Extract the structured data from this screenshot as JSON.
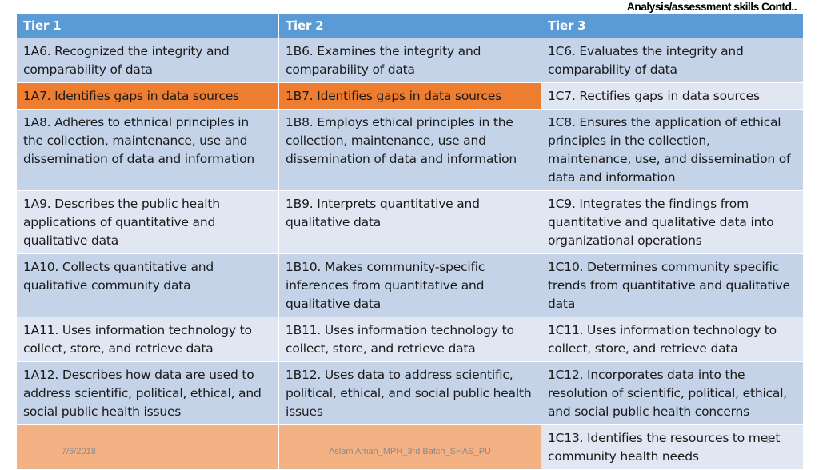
{
  "slide": {
    "title": "Analysis/assessment skills Contd.."
  },
  "table": {
    "headers": [
      "Tier 1",
      "Tier 2",
      "Tier 3"
    ],
    "rows": [
      [
        "1A6. Recognized the integrity and comparability of data",
        "1B6. Examines the integrity and comparability of data",
        "1C6. Evaluates the integrity and comparability of data"
      ],
      [
        "1A7. Identifies  gaps in data sources",
        "1B7. Identifies  gaps in data sources",
        "1C7. Rectifies gaps in data sources"
      ],
      [
        "1A8. Adheres to ethnical principles in the collection, maintenance, use and dissemination of data and information",
        "1B8. Employs ethical principles in the collection, maintenance, use and dissemination of data and information",
        "1C8. Ensures the application of ethical principles in the collection, maintenance, use, and dissemination of data and information"
      ],
      [
        "1A9. Describes the public health applications of quantitative and qualitative data",
        "1B9. Interprets quantitative and qualitative data",
        "1C9. Integrates the findings from quantitative and qualitative data into organizational operations"
      ],
      [
        "1A10. Collects quantitative and qualitative community data",
        "1B10. Makes community-specific inferences from quantitative and qualitative data",
        "1C10. Determines community specific trends from quantitative and qualitative data"
      ],
      [
        "1A11. Uses information technology to collect, store, and retrieve data",
        "1B11. Uses information technology to collect, store, and retrieve data",
        "1C11. Uses information technology to collect, store, and retrieve data"
      ],
      [
        "1A12. Describes how data are used to address scientific, political, ethical, and social public health issues",
        "1B12. Uses data to address scientific, political, ethical, and social public health issues",
        "1C12. Incorporates data into the resolution of scientific, political, ethical, and social public health concerns"
      ],
      [
        "",
        "",
        "1C13. Identifies the resources to meet community health needs"
      ]
    ]
  },
  "footer": {
    "date": "7/6/2018",
    "author": "Aslam Aman_MPH_3rd Batch_SHAS_PU",
    "page": "8"
  },
  "colors": {
    "header": "#5b9bd5",
    "row_dark": "#c5d3e9",
    "row_light": "#e0e7f3",
    "highlight": "#ed7d31",
    "last_row": "#f4b183"
  }
}
